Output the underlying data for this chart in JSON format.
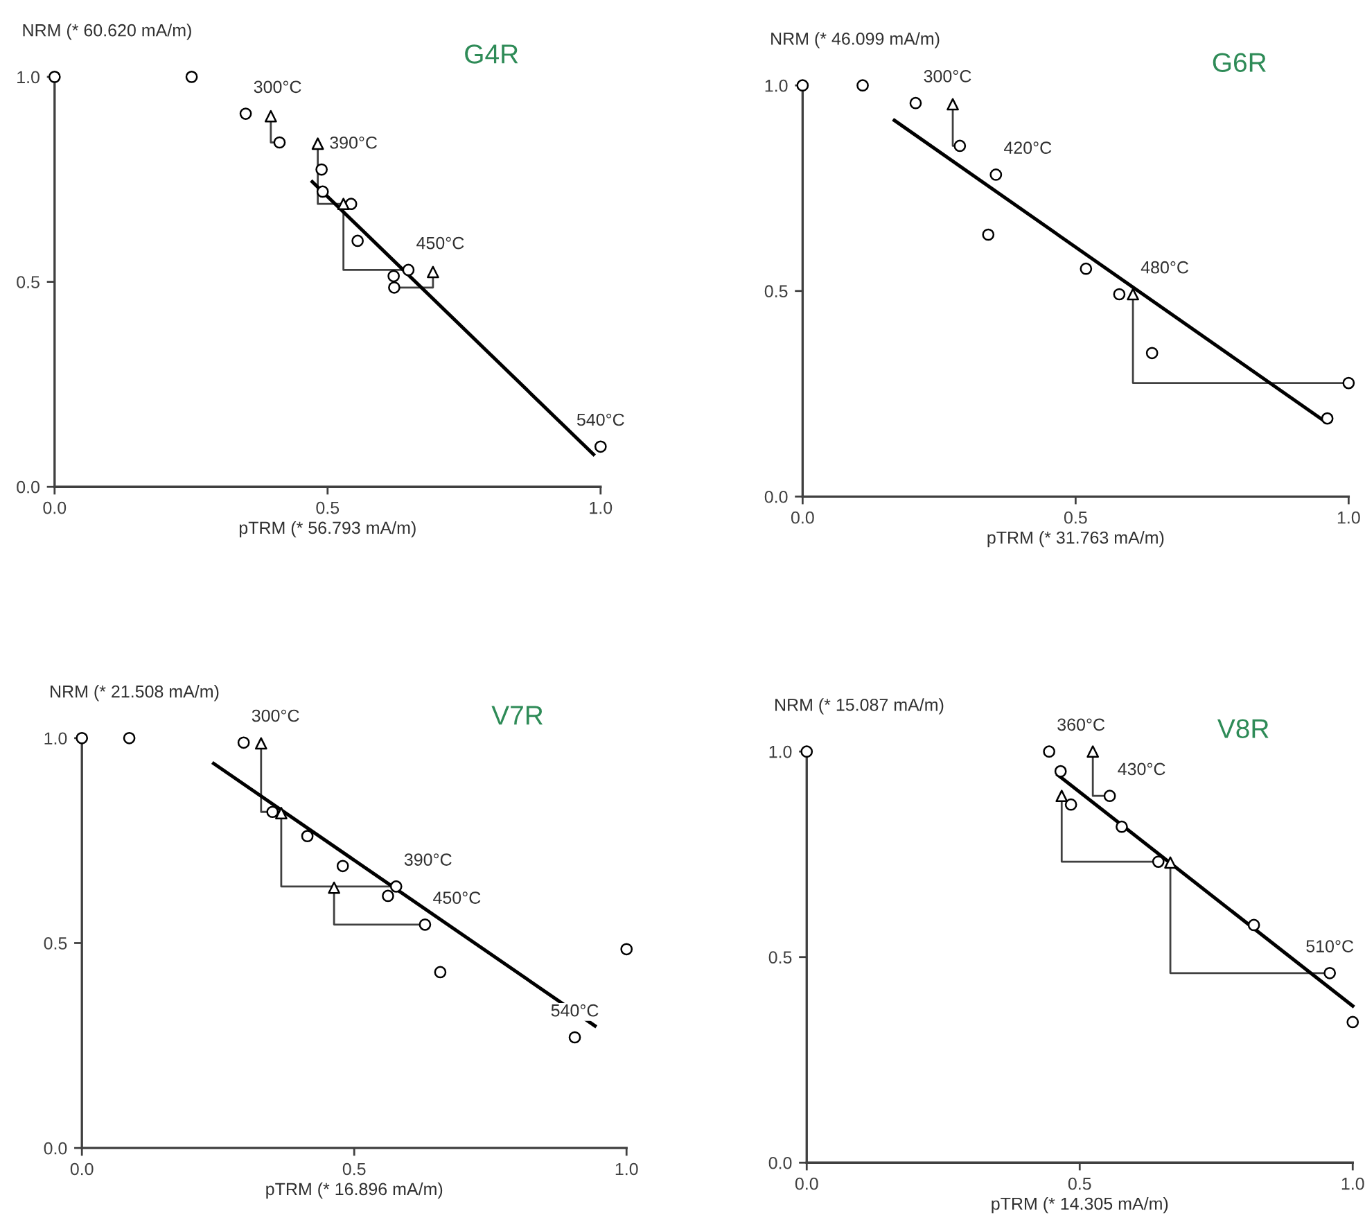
{
  "chart_data": [
    {
      "type": "scatter",
      "title": "G4R",
      "xlabel": "pTRM (* 56.793 mA/m)",
      "ylabel": "NRM (* 60.620 mA/m)",
      "xlim": [
        0,
        1
      ],
      "ylim": [
        0,
        1
      ],
      "xticks": [
        {
          "value": 0,
          "label": "0.0"
        },
        {
          "value": 0.5,
          "label": "0.5"
        },
        {
          "value": 1,
          "label": "1.0"
        }
      ],
      "yticks": [
        {
          "value": 0,
          "label": "0.0"
        },
        {
          "value": 0.5,
          "label": "0.5"
        },
        {
          "value": 1,
          "label": "1.0"
        }
      ],
      "grid": false,
      "series": [
        {
          "type": "line",
          "color": "#404040",
          "marker": "none",
          "x": [
            0.396,
            0.396,
            0.412
          ],
          "values": [
            0.904,
            0.84,
            0.84
          ]
        },
        {
          "type": "line",
          "color": "#404040",
          "marker": "none",
          "x": [
            0.482,
            0.482,
            0.529
          ],
          "values": [
            0.837,
            0.69,
            0.69
          ]
        },
        {
          "type": "line",
          "color": "#404040",
          "marker": "none",
          "x": [
            0.529,
            0.529,
            0.648
          ],
          "values": [
            0.69,
            0.529,
            0.529
          ]
        },
        {
          "type": "line",
          "color": "#404040",
          "marker": "none",
          "x": [
            0.693,
            0.693,
            0.622
          ],
          "values": [
            0.524,
            0.486,
            0.486
          ]
        },
        {
          "type": "line",
          "color": "#000000",
          "marker": "none",
          "x": [
            0.472,
            0.987
          ],
          "values": [
            0.744,
            0.079
          ]
        },
        {
          "color": "#000000",
          "marker": "circle",
          "x": [
            0,
            0.251,
            0.35,
            0.412,
            0.489,
            0.491,
            0.543,
            0.555,
            0.648,
            0.621,
            0.622,
            1.0
          ],
          "values": [
            1.0,
            1.0,
            0.91,
            0.84,
            0.774,
            0.72,
            0.69,
            0.6,
            0.529,
            0.514,
            0.486,
            0.098
          ]
        },
        {
          "color": "#000000",
          "marker": "triangle",
          "x": [
            0.396,
            0.482,
            0.529,
            0.693
          ],
          "values": [
            0.904,
            0.837,
            0.69,
            0.524
          ]
        }
      ],
      "annotations": [
        {
          "text": "300°C",
          "x": 0.35,
          "y": 0.91
        },
        {
          "text": "390°C",
          "x": 0.489,
          "y": 0.774
        },
        {
          "text": "450°C",
          "x": 0.648,
          "y": 0.529
        },
        {
          "text": "540°C",
          "x": 1.0,
          "y": 0.098
        }
      ]
    },
    {
      "type": "scatter",
      "title": "G6R",
      "xlabel": "pTRM (* 31.763 mA/m)",
      "ylabel": "NRM (* 46.099 mA/m)",
      "xlim": [
        0,
        1
      ],
      "ylim": [
        0,
        1
      ],
      "xticks": [
        {
          "value": 0,
          "label": "0.0"
        },
        {
          "value": 0.5,
          "label": "0.5"
        },
        {
          "value": 1,
          "label": "1.0"
        }
      ],
      "yticks": [
        {
          "value": 0,
          "label": "0.0"
        },
        {
          "value": 0.5,
          "label": "0.5"
        },
        {
          "value": 1,
          "label": "1.0"
        }
      ],
      "grid": false,
      "series": [
        {
          "type": "line",
          "color": "#404040",
          "marker": "none",
          "x": [
            0.275,
            0.275,
            0.288
          ],
          "values": [
            0.954,
            0.853,
            0.853
          ]
        },
        {
          "type": "line",
          "color": "#404040",
          "marker": "none",
          "x": [
            0.605,
            0.605,
            1.0
          ],
          "values": [
            0.492,
            0.276,
            0.276
          ]
        },
        {
          "type": "line",
          "color": "#000000",
          "marker": "none",
          "x": [
            0.168,
            0.954
          ],
          "values": [
            0.915,
            0.185
          ]
        },
        {
          "color": "#000000",
          "marker": "circle",
          "x": [
            0,
            0.11,
            0.207,
            0.288,
            0.354,
            0.34,
            0.519,
            0.58,
            0.64,
            1.0,
            0.961
          ],
          "values": [
            1.0,
            1.0,
            0.957,
            0.853,
            0.783,
            0.637,
            0.554,
            0.492,
            0.349,
            0.276,
            0.19
          ]
        },
        {
          "color": "#000000",
          "marker": "triangle",
          "x": [
            0.275,
            0.605
          ],
          "values": [
            0.954,
            0.492
          ]
        }
      ],
      "annotations": [
        {
          "text": "300°C",
          "x": 0.207,
          "y": 0.957
        },
        {
          "text": "420°C",
          "x": 0.354,
          "y": 0.783
        },
        {
          "text": "480°C",
          "x": 0.605,
          "y": 0.492
        }
      ]
    },
    {
      "type": "scatter",
      "title": "V7R",
      "xlabel": "pTRM (* 16.896 mA/m)",
      "ylabel": "NRM (* 21.508 mA/m)",
      "xlim": [
        0,
        1
      ],
      "ylim": [
        0,
        1
      ],
      "xticks": [
        {
          "value": 0,
          "label": "0.0"
        },
        {
          "value": 0.5,
          "label": "0.5"
        },
        {
          "value": 1,
          "label": "1.0"
        }
      ],
      "yticks": [
        {
          "value": 0,
          "label": "0.0"
        },
        {
          "value": 0.5,
          "label": "0.5"
        },
        {
          "value": 1,
          "label": "1.0"
        }
      ],
      "grid": false,
      "series": [
        {
          "type": "line",
          "color": "#404040",
          "marker": "none",
          "x": [
            0.329,
            0.329,
            0.35
          ],
          "values": [
            0.987,
            0.82,
            0.82
          ]
        },
        {
          "type": "line",
          "color": "#404040",
          "marker": "none",
          "x": [
            0.366,
            0.366,
            0.577
          ],
          "values": [
            0.817,
            0.638,
            0.638
          ]
        },
        {
          "type": "line",
          "color": "#404040",
          "marker": "none",
          "x": [
            0.463,
            0.463,
            0.63
          ],
          "values": [
            0.635,
            0.545,
            0.545
          ]
        },
        {
          "type": "line",
          "color": "#000000",
          "marker": "none",
          "x": [
            0.242,
            0.942
          ],
          "values": [
            0.938,
            0.298
          ]
        },
        {
          "color": "#000000",
          "marker": "circle",
          "x": [
            0,
            0.087,
            0.297,
            0.35,
            0.414,
            0.479,
            0.577,
            0.562,
            0.63,
            0.658,
            1.0,
            0.905
          ],
          "values": [
            1.0,
            1.0,
            0.989,
            0.82,
            0.761,
            0.688,
            0.638,
            0.615,
            0.545,
            0.429,
            0.485,
            0.27
          ]
        },
        {
          "color": "#000000",
          "marker": "triangle",
          "x": [
            0.329,
            0.366,
            0.463
          ],
          "values": [
            0.987,
            0.817,
            0.635
          ]
        }
      ],
      "annotations": [
        {
          "text": "300°C",
          "x": 0.297,
          "y": 0.989
        },
        {
          "text": "390°C",
          "x": 0.577,
          "y": 0.638
        },
        {
          "text": "450°C",
          "x": 0.63,
          "y": 0.545
        },
        {
          "text": "540°C",
          "x": 0.905,
          "y": 0.27
        }
      ]
    },
    {
      "type": "scatter",
      "title": "V8R",
      "xlabel": "pTRM (* 14.305 mA/m)",
      "ylabel": "NRM (* 15.087 mA/m)",
      "xlim": [
        0,
        1
      ],
      "ylim": [
        0,
        1
      ],
      "xticks": [
        {
          "value": 0,
          "label": "0.0"
        },
        {
          "value": 0.5,
          "label": "0.5"
        },
        {
          "value": 1,
          "label": "1.0"
        }
      ],
      "yticks": [
        {
          "value": 0,
          "label": "0.0"
        },
        {
          "value": 0.5,
          "label": "0.5"
        },
        {
          "value": 1,
          "label": "1.0"
        }
      ],
      "grid": false,
      "series": [
        {
          "type": "line",
          "color": "#404040",
          "marker": "none",
          "x": [
            0.524,
            0.524,
            0.555
          ],
          "values": [
            1.0,
            0.892,
            0.892
          ]
        },
        {
          "type": "line",
          "color": "#404040",
          "marker": "none",
          "x": [
            0.467,
            0.467,
            0.644
          ],
          "values": [
            0.892,
            0.732,
            0.732
          ]
        },
        {
          "type": "line",
          "color": "#404040",
          "marker": "none",
          "x": [
            0.666,
            0.666,
            0.958
          ],
          "values": [
            0.73,
            0.461,
            0.461
          ]
        },
        {
          "type": "line",
          "color": "#000000",
          "marker": "none",
          "x": [
            0.46,
            1.0
          ],
          "values": [
            0.943,
            0.381
          ]
        },
        {
          "color": "#000000",
          "marker": "circle",
          "x": [
            0,
            0.444,
            0.465,
            0.484,
            0.555,
            0.577,
            0.644,
            0.819,
            0.958,
            1.0
          ],
          "values": [
            1.0,
            1.0,
            0.952,
            0.871,
            0.892,
            0.817,
            0.732,
            0.578,
            0.461,
            0.342
          ]
        },
        {
          "color": "#000000",
          "marker": "triangle",
          "x": [
            0.524,
            0.467,
            0.666
          ],
          "values": [
            1.0,
            0.892,
            0.73
          ]
        }
      ],
      "annotations": [
        {
          "text": "360°C",
          "x": 0.444,
          "y": 1.0
        },
        {
          "text": "430°C",
          "x": 0.555,
          "y": 0.892
        },
        {
          "text": "510°C",
          "x": 0.958,
          "y": 0.461
        }
      ]
    }
  ]
}
